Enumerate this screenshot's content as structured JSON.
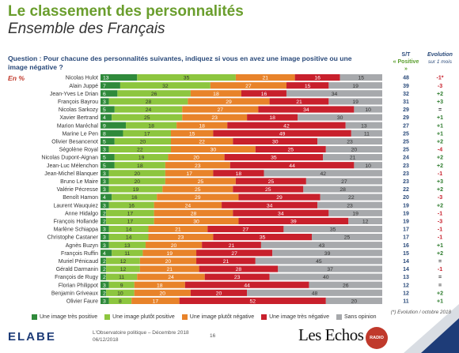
{
  "header": {
    "title": "Le classement des personnalités",
    "subtitle": "Ensemble des Français",
    "question": "Question : Pour chacune des personnalités suivantes, indiquez si vous en avez une image positive ou une image négative ?",
    "unit": "En %",
    "col_st_line1": "S/T",
    "col_st_line2": "« Positive »",
    "col_evo_line1": "Evolution",
    "col_evo_line2": "sur 1 mois"
  },
  "colors": {
    "tres_positive": "#2f8a3b",
    "plutot_positive": "#8dc63f",
    "plutot_negative": "#e8832a",
    "tres_negative": "#c8202c",
    "sans_opinion": "#a7a9ac",
    "title": "#6a9e2d",
    "evo_pos": "#2a7a2a",
    "evo_neg": "#c8202c"
  },
  "chart_data": {
    "type": "bar",
    "stacked": true,
    "orientation": "horizontal",
    "xlim": [
      0,
      100
    ],
    "categories": [
      "Nicolas Hulot",
      "Alain Juppé",
      "Jean-Yves Le Drian",
      "François Bayrou",
      "Nicolas Sarkozy",
      "Xavier Bertrand",
      "Marion Maréchal",
      "Marine Le Pen",
      "Olivier Besancenot",
      "Ségolène Royal",
      "Nicolas Dupont-Aignan",
      "Jean-Luc Mélenchon",
      "Jean-Michel Blanquer",
      "Bruno Le Maire",
      "Valérie Pécresse",
      "Benoît Hamon",
      "Laurent Wauquiez",
      "Anne Hidalgo",
      "François Hollande",
      "Marlène Schiappa",
      "Christophe Castaner",
      "Agnès Buzyn",
      "François Ruffin",
      "Muriel Pénicaud",
      "Gérald Darmanin",
      "François de Rugy",
      "Florian Philippot",
      "Benjamin Griveaux",
      "Olivier Faure"
    ],
    "series": [
      {
        "name": "Une image très positive",
        "values": [
          13,
          7,
          6,
          3,
          5,
          4,
          9,
          8,
          5,
          3,
          5,
          5,
          3,
          3,
          3,
          4,
          3,
          2,
          2,
          3,
          3,
          3,
          4,
          2,
          2,
          2,
          3,
          2,
          3
        ]
      },
      {
        "name": "Une image plutôt positive",
        "values": [
          35,
          32,
          26,
          28,
          24,
          25,
          18,
          17,
          20,
          22,
          19,
          18,
          20,
          20,
          19,
          16,
          16,
          17,
          17,
          14,
          14,
          13,
          11,
          12,
          12,
          11,
          9,
          10,
          8
        ]
      },
      {
        "name": "Une image plutôt négative",
        "values": [
          21,
          27,
          18,
          29,
          27,
          23,
          18,
          15,
          22,
          30,
          20,
          23,
          17,
          25,
          25,
          29,
          24,
          28,
          30,
          21,
          23,
          20,
          19,
          20,
          21,
          24,
          18,
          20,
          17
        ]
      },
      {
        "name": "Une image très négative",
        "values": [
          16,
          15,
          16,
          21,
          34,
          18,
          42,
          49,
          30,
          25,
          35,
          44,
          18,
          25,
          25,
          29,
          34,
          34,
          39,
          27,
          35,
          21,
          27,
          21,
          28,
          23,
          44,
          20,
          52
        ]
      },
      {
        "name": "Sans opinion",
        "values": [
          15,
          19,
          34,
          19,
          10,
          30,
          13,
          11,
          23,
          20,
          21,
          10,
          42,
          27,
          28,
          22,
          23,
          19,
          12,
          35,
          25,
          43,
          39,
          45,
          37,
          40,
          26,
          48,
          20
        ]
      }
    ],
    "st_positive": [
      "48",
      "39",
      "32",
      "31",
      "29",
      "29",
      "27",
      "25",
      "25",
      "25",
      "24",
      "23",
      "23",
      "23",
      "22",
      "20",
      "19",
      "19",
      "19",
      "17",
      "17",
      "16",
      "15",
      "14",
      "14",
      "13",
      "12",
      "12",
      "11"
    ],
    "evolution": [
      "-1*",
      "-3",
      "+2",
      "+3",
      "=",
      "+1",
      "+1",
      "+1",
      "+2",
      "-4",
      "+2",
      "+2",
      "-1",
      "+3",
      "+2",
      "-3",
      "+2",
      "-1",
      "-3",
      "-1",
      "-1",
      "+1",
      "+2",
      "=",
      "-1",
      "=",
      "=",
      "+2",
      "+1"
    ]
  },
  "legend": {
    "tres_positive": "Une image très positive",
    "plutot_positive": "Une image plutôt positive",
    "plutot_negative": "Une image plutôt négative",
    "tres_negative": "Une image très négative",
    "sans_opinion": "Sans opinion"
  },
  "footer": {
    "logo_elabe": "ELABE",
    "observatoire": "L'Observatoire politique – Décembre 2018",
    "date": "06/12/2018",
    "page": "16",
    "les_echos": "Les Echos",
    "badge": "RADIO CLASSIQUE",
    "footnote": "(*) Evolution / octobre 2018"
  }
}
